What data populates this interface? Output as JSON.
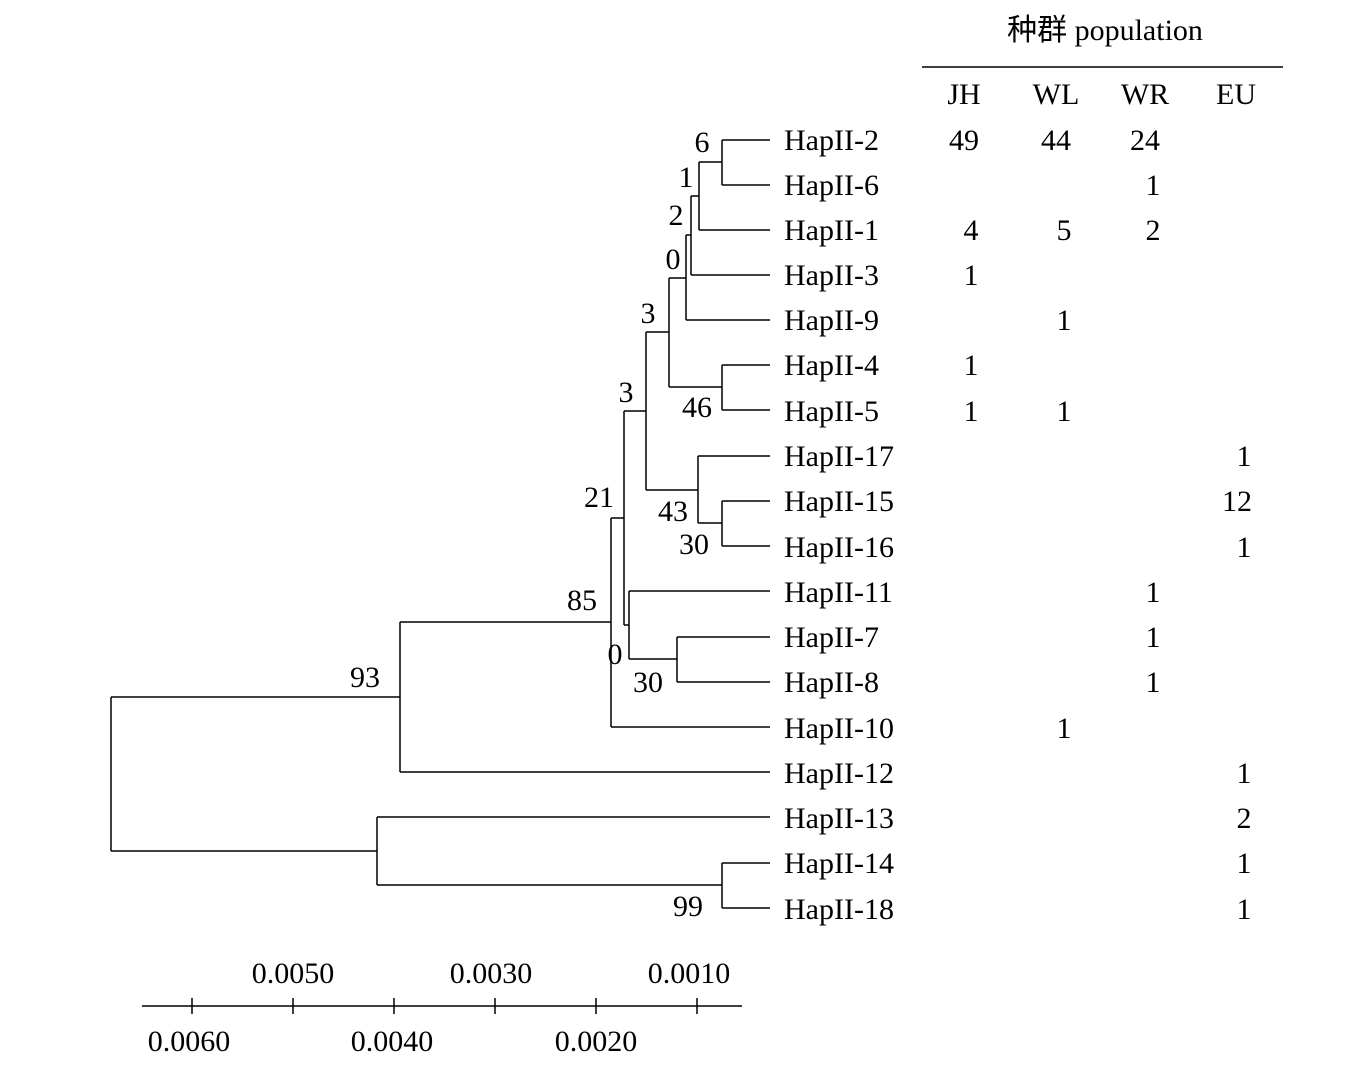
{
  "header": {
    "title": "种群 population",
    "columns": [
      "JH",
      "WL",
      "WR",
      "EU"
    ]
  },
  "haplotypes": [
    {
      "name": "HapII-2",
      "counts": [
        "49",
        "44",
        "24",
        ""
      ]
    },
    {
      "name": "HapII-6",
      "counts": [
        "",
        "",
        "1",
        ""
      ]
    },
    {
      "name": "HapII-1",
      "counts": [
        "4",
        "5",
        "2",
        ""
      ]
    },
    {
      "name": "HapII-3",
      "counts": [
        "1",
        "",
        "",
        ""
      ]
    },
    {
      "name": "HapII-9",
      "counts": [
        "",
        "1",
        "",
        ""
      ]
    },
    {
      "name": "HapII-4",
      "counts": [
        "1",
        "",
        "",
        ""
      ]
    },
    {
      "name": "HapII-5",
      "counts": [
        "1",
        "1",
        "",
        ""
      ]
    },
    {
      "name": "HapII-17",
      "counts": [
        "",
        "",
        "",
        "1"
      ]
    },
    {
      "name": "HapII-15",
      "counts": [
        "",
        "",
        "",
        "12"
      ]
    },
    {
      "name": "HapII-16",
      "counts": [
        "",
        "",
        "",
        "1"
      ]
    },
    {
      "name": "HapII-11",
      "counts": [
        "",
        "",
        "1",
        ""
      ]
    },
    {
      "name": "HapII-7",
      "counts": [
        "",
        "",
        "1",
        ""
      ]
    },
    {
      "name": "HapII-8",
      "counts": [
        "",
        "",
        "1",
        ""
      ]
    },
    {
      "name": "HapII-10",
      "counts": [
        "",
        "1",
        "",
        ""
      ]
    },
    {
      "name": "HapII-12",
      "counts": [
        "",
        "",
        "",
        "1"
      ]
    },
    {
      "name": "HapII-13",
      "counts": [
        "",
        "",
        "",
        "2"
      ]
    },
    {
      "name": "HapII-14",
      "counts": [
        "",
        "",
        "",
        "1"
      ]
    },
    {
      "name": "HapII-18",
      "counts": [
        "",
        "",
        "",
        "1"
      ]
    }
  ],
  "bootstrap": {
    "n6": "6",
    "n1": "1",
    "n2": "2",
    "n0a": "0",
    "n3a": "3",
    "n46": "46",
    "n3b": "3",
    "n43": "43",
    "n30a": "30",
    "n21": "21",
    "n85": "85",
    "n0b": "0",
    "n30b": "30",
    "n93": "93",
    "n99": "99"
  },
  "scale": {
    "top_labels": [
      "0.0050",
      "0.0030",
      "0.0010"
    ],
    "bottom_labels": [
      "0.0060",
      "0.0040",
      "0.0020"
    ]
  }
}
